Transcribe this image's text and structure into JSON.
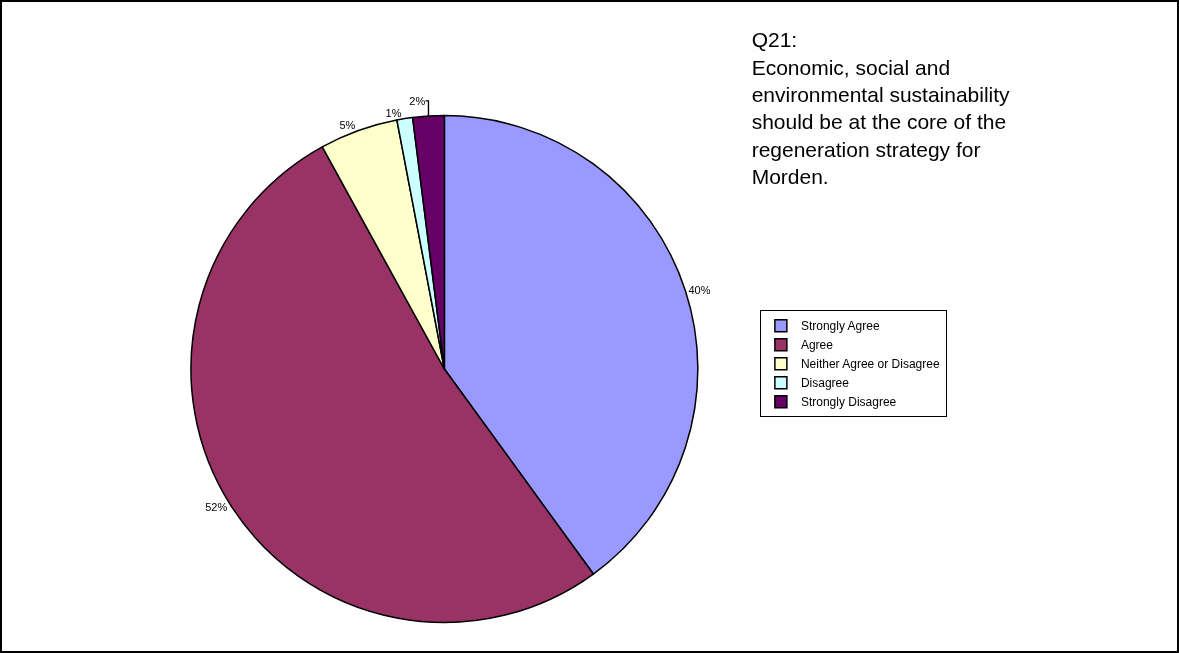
{
  "chart_data": {
    "type": "pie",
    "title": "Q21:\nEconomic, social and\nenvironmental sustainability\nshould be at the core of the\nregeneration strategy for\nMorden.",
    "categories": [
      "Strongly Agree",
      "Agree",
      "Neither Agree or Disagree",
      "Disagree",
      "Strongly Disagree"
    ],
    "values": [
      40,
      52,
      5,
      1,
      2
    ],
    "colors": [
      "#9999ff",
      "#993366",
      "#ffffcc",
      "#ccffff",
      "#660066"
    ],
    "value_labels": [
      "40%",
      "52%",
      "5%",
      "1%",
      "2%"
    ],
    "legend": "right"
  }
}
